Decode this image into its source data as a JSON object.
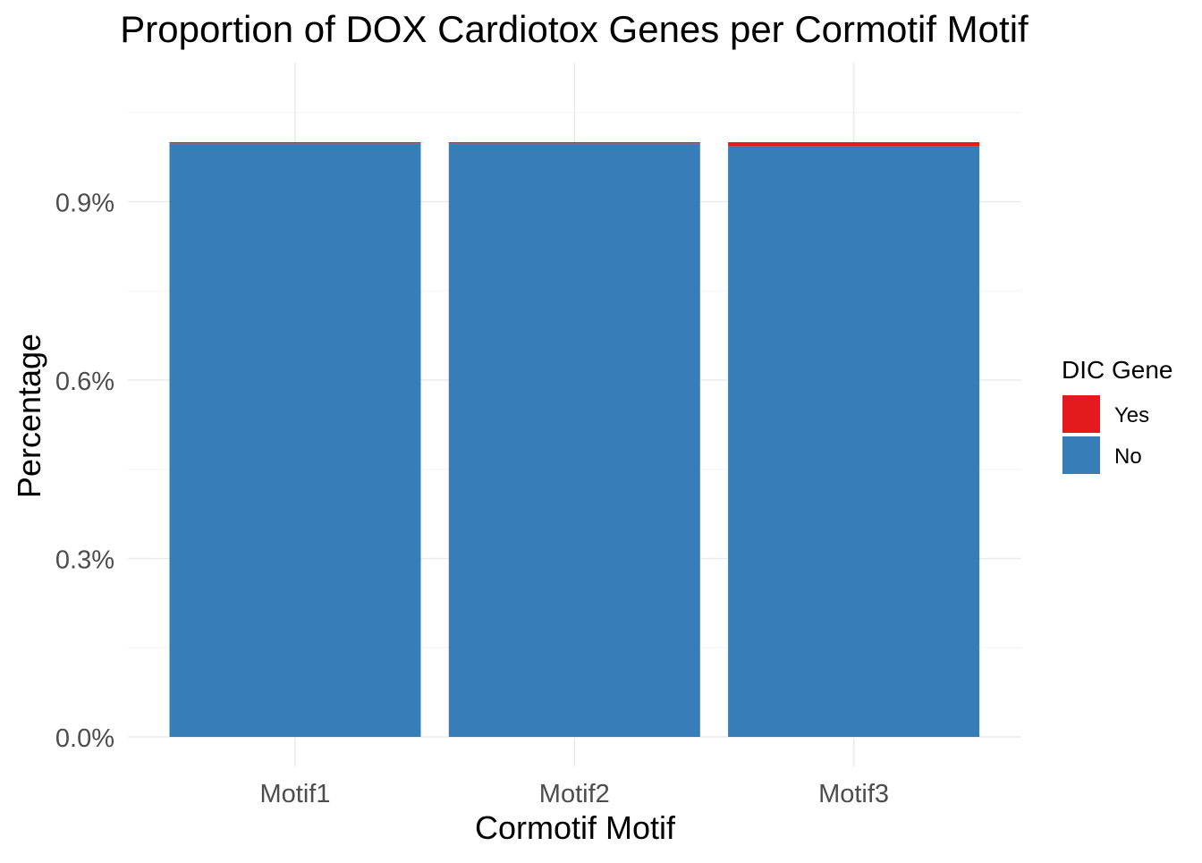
{
  "chart_data": {
    "type": "bar",
    "stacked": true,
    "title": "Proportion of DOX Cardiotox Genes per Cormotif Motif",
    "xlabel": "Cormotif Motif",
    "ylabel": "Percentage",
    "categories": [
      "Motif1",
      "Motif2",
      "Motif3"
    ],
    "y_ticks": [
      0,
      0.3,
      0.6,
      0.9
    ],
    "y_tick_labels": [
      "0.0%",
      "0.3%",
      "0.6%",
      "0.9%"
    ],
    "ylim": [
      0,
      1.05
    ],
    "grid": true,
    "legend": {
      "title": "DIC Gene",
      "position": "right"
    },
    "series": [
      {
        "name": "No",
        "color": "#377EB8",
        "values": [
          0.998,
          0.998,
          0.994
        ]
      },
      {
        "name": "Yes",
        "color": "#E41A1C",
        "values": [
          0.002,
          0.002,
          0.006
        ]
      }
    ],
    "legend_order": [
      "Yes",
      "No"
    ]
  }
}
